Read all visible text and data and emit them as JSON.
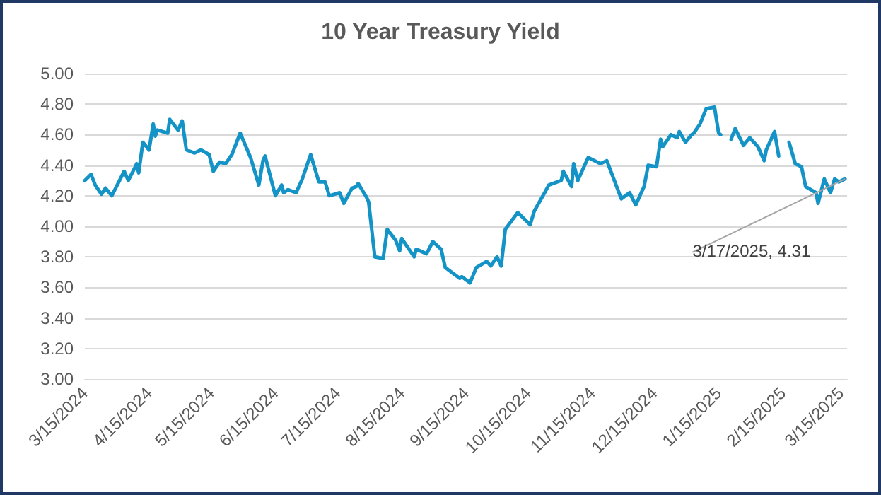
{
  "chart_data": {
    "type": "line",
    "title": "10 Year Treasury Yield",
    "x": [
      "2024-03-15",
      "2024-03-18",
      "2024-03-20",
      "2024-03-23",
      "2024-03-25",
      "2024-03-28",
      "2024-04-03",
      "2024-04-05",
      "2024-04-08",
      "2024-04-09",
      "2024-04-10",
      "2024-04-12",
      "2024-04-15",
      "2024-04-17",
      "2024-04-18",
      "2024-04-19",
      "2024-04-24",
      "2024-04-25",
      "2024-04-29",
      "2024-05-01",
      "2024-05-03",
      "2024-05-07",
      "2024-05-10",
      "2024-05-14",
      "2024-05-16",
      "2024-05-19",
      "2024-05-22",
      "2024-05-25",
      "2024-05-29",
      "2024-06-03",
      "2024-06-07",
      "2024-06-09",
      "2024-06-10",
      "2024-06-15",
      "2024-06-18",
      "2024-06-19",
      "2024-06-21",
      "2024-06-25",
      "2024-06-28",
      "2024-07-02",
      "2024-07-06",
      "2024-07-09",
      "2024-07-11",
      "2024-07-16",
      "2024-07-18",
      "2024-07-22",
      "2024-07-24",
      "2024-07-25",
      "2024-07-29",
      "2024-07-30",
      "2024-08-02",
      "2024-08-06",
      "2024-08-08",
      "2024-08-12",
      "2024-08-14",
      "2024-08-15",
      "2024-08-21",
      "2024-08-22",
      "2024-08-27",
      "2024-08-30",
      "2024-09-03",
      "2024-09-05",
      "2024-09-09",
      "2024-09-12",
      "2024-09-13",
      "2024-09-17",
      "2024-09-20",
      "2024-09-25",
      "2024-09-27",
      "2024-09-30",
      "2024-10-02",
      "2024-10-04",
      "2024-10-10",
      "2024-10-16",
      "2024-10-18",
      "2024-10-23",
      "2024-10-25",
      "2024-10-31",
      "2024-11-01",
      "2024-11-05",
      "2024-11-06",
      "2024-11-08",
      "2024-11-13",
      "2024-11-19",
      "2024-11-22",
      "2024-11-29",
      "2024-12-03",
      "2024-12-06",
      "2024-12-10",
      "2024-12-12",
      "2024-12-16",
      "2024-12-18",
      "2024-12-19",
      "2024-12-23",
      "2024-12-26",
      "2024-12-27",
      "2024-12-30",
      "2025-01-02",
      "2025-01-03",
      "2025-01-06",
      "2025-01-09",
      "2025-01-13",
      "2025-01-15",
      "2025-01-16",
      "2025-01-20",
      "2025-01-21",
      "2025-01-23",
      "2025-01-27",
      "2025-01-30",
      "2025-02-03",
      "2025-02-06",
      "2025-02-07",
      "2025-02-11",
      "2025-02-13",
      "2025-02-17",
      "2025-02-18",
      "2025-02-21",
      "2025-02-24",
      "2025-02-26",
      "2025-03-03",
      "2025-03-04",
      "2025-03-07",
      "2025-03-10",
      "2025-03-12",
      "2025-03-14",
      "2025-03-17"
    ],
    "series": [
      {
        "color": "#1494c6",
        "values": [
          4.3,
          4.34,
          4.27,
          4.21,
          4.25,
          4.2,
          4.36,
          4.3,
          4.38,
          4.41,
          4.35,
          4.55,
          4.5,
          4.67,
          4.59,
          4.63,
          4.61,
          4.7,
          4.63,
          4.69,
          4.5,
          4.48,
          4.5,
          4.47,
          4.36,
          4.42,
          4.41,
          4.47,
          4.61,
          4.45,
          4.27,
          4.43,
          4.46,
          4.2,
          4.27,
          4.22,
          4.24,
          4.22,
          4.31,
          4.47,
          4.29,
          4.29,
          4.2,
          4.22,
          4.15,
          4.25,
          4.26,
          4.28,
          4.19,
          4.16,
          3.8,
          3.79,
          3.98,
          3.91,
          3.84,
          3.92,
          3.8,
          3.85,
          3.82,
          3.9,
          3.85,
          3.73,
          3.69,
          3.66,
          3.67,
          3.63,
          3.73,
          3.77,
          3.74,
          3.8,
          3.74,
          3.98,
          4.09,
          4.01,
          4.1,
          4.22,
          4.27,
          4.3,
          4.36,
          4.26,
          4.41,
          4.3,
          4.45,
          4.41,
          4.43,
          4.18,
          4.22,
          4.14,
          4.26,
          4.4,
          4.39,
          4.57,
          4.52,
          4.6,
          4.58,
          4.62,
          4.55,
          4.6,
          4.61,
          4.67,
          4.77,
          4.78,
          4.61,
          4.6,
          null,
          4.57,
          4.64,
          4.53,
          4.58,
          4.52,
          4.43,
          4.5,
          4.62,
          4.46,
          null,
          4.55,
          4.41,
          4.39,
          4.26,
          4.22,
          4.15,
          4.31,
          4.22,
          4.31,
          4.29,
          4.31
        ]
      }
    ],
    "xlim": [
      "2024-03-15",
      "2025-03-18"
    ],
    "xticks": [
      {
        "value": "2024-03-15",
        "label": "3/15/2024"
      },
      {
        "value": "2024-04-15",
        "label": "4/15/2024"
      },
      {
        "value": "2024-05-15",
        "label": "5/15/2024"
      },
      {
        "value": "2024-06-15",
        "label": "6/15/2024"
      },
      {
        "value": "2024-07-15",
        "label": "7/15/2024"
      },
      {
        "value": "2024-08-15",
        "label": "8/15/2024"
      },
      {
        "value": "2024-09-15",
        "label": "9/15/2024"
      },
      {
        "value": "2024-10-15",
        "label": "10/15/2024"
      },
      {
        "value": "2024-11-15",
        "label": "11/15/2024"
      },
      {
        "value": "2024-12-15",
        "label": "12/15/2024"
      },
      {
        "value": "2025-01-15",
        "label": "1/15/2025"
      },
      {
        "value": "2025-02-15",
        "label": "2/15/2025"
      },
      {
        "value": "2025-03-15",
        "label": "3/15/2025"
      }
    ],
    "ylim": [
      3,
      5
    ],
    "yticks": [
      {
        "value": 3,
        "label": "3.00"
      },
      {
        "value": 3.2,
        "label": "3.20"
      },
      {
        "value": 3.4,
        "label": "3.40"
      },
      {
        "value": 3.6,
        "label": "3.60"
      },
      {
        "value": 3.8,
        "label": "3.80"
      },
      {
        "value": 4,
        "label": "4.00"
      },
      {
        "value": 4.2,
        "label": "4.20"
      },
      {
        "value": 4.4,
        "label": "4.40"
      },
      {
        "value": 4.6,
        "label": "4.60"
      },
      {
        "value": 4.8,
        "label": "4.80"
      },
      {
        "value": 5,
        "label": "5.00"
      }
    ],
    "annotations": [
      {
        "text": "3/17/2025, 4.31",
        "x": "2025-03-17",
        "y": 4.31
      }
    ],
    "grid": "y",
    "marker": "none",
    "line_style": "solid"
  }
}
